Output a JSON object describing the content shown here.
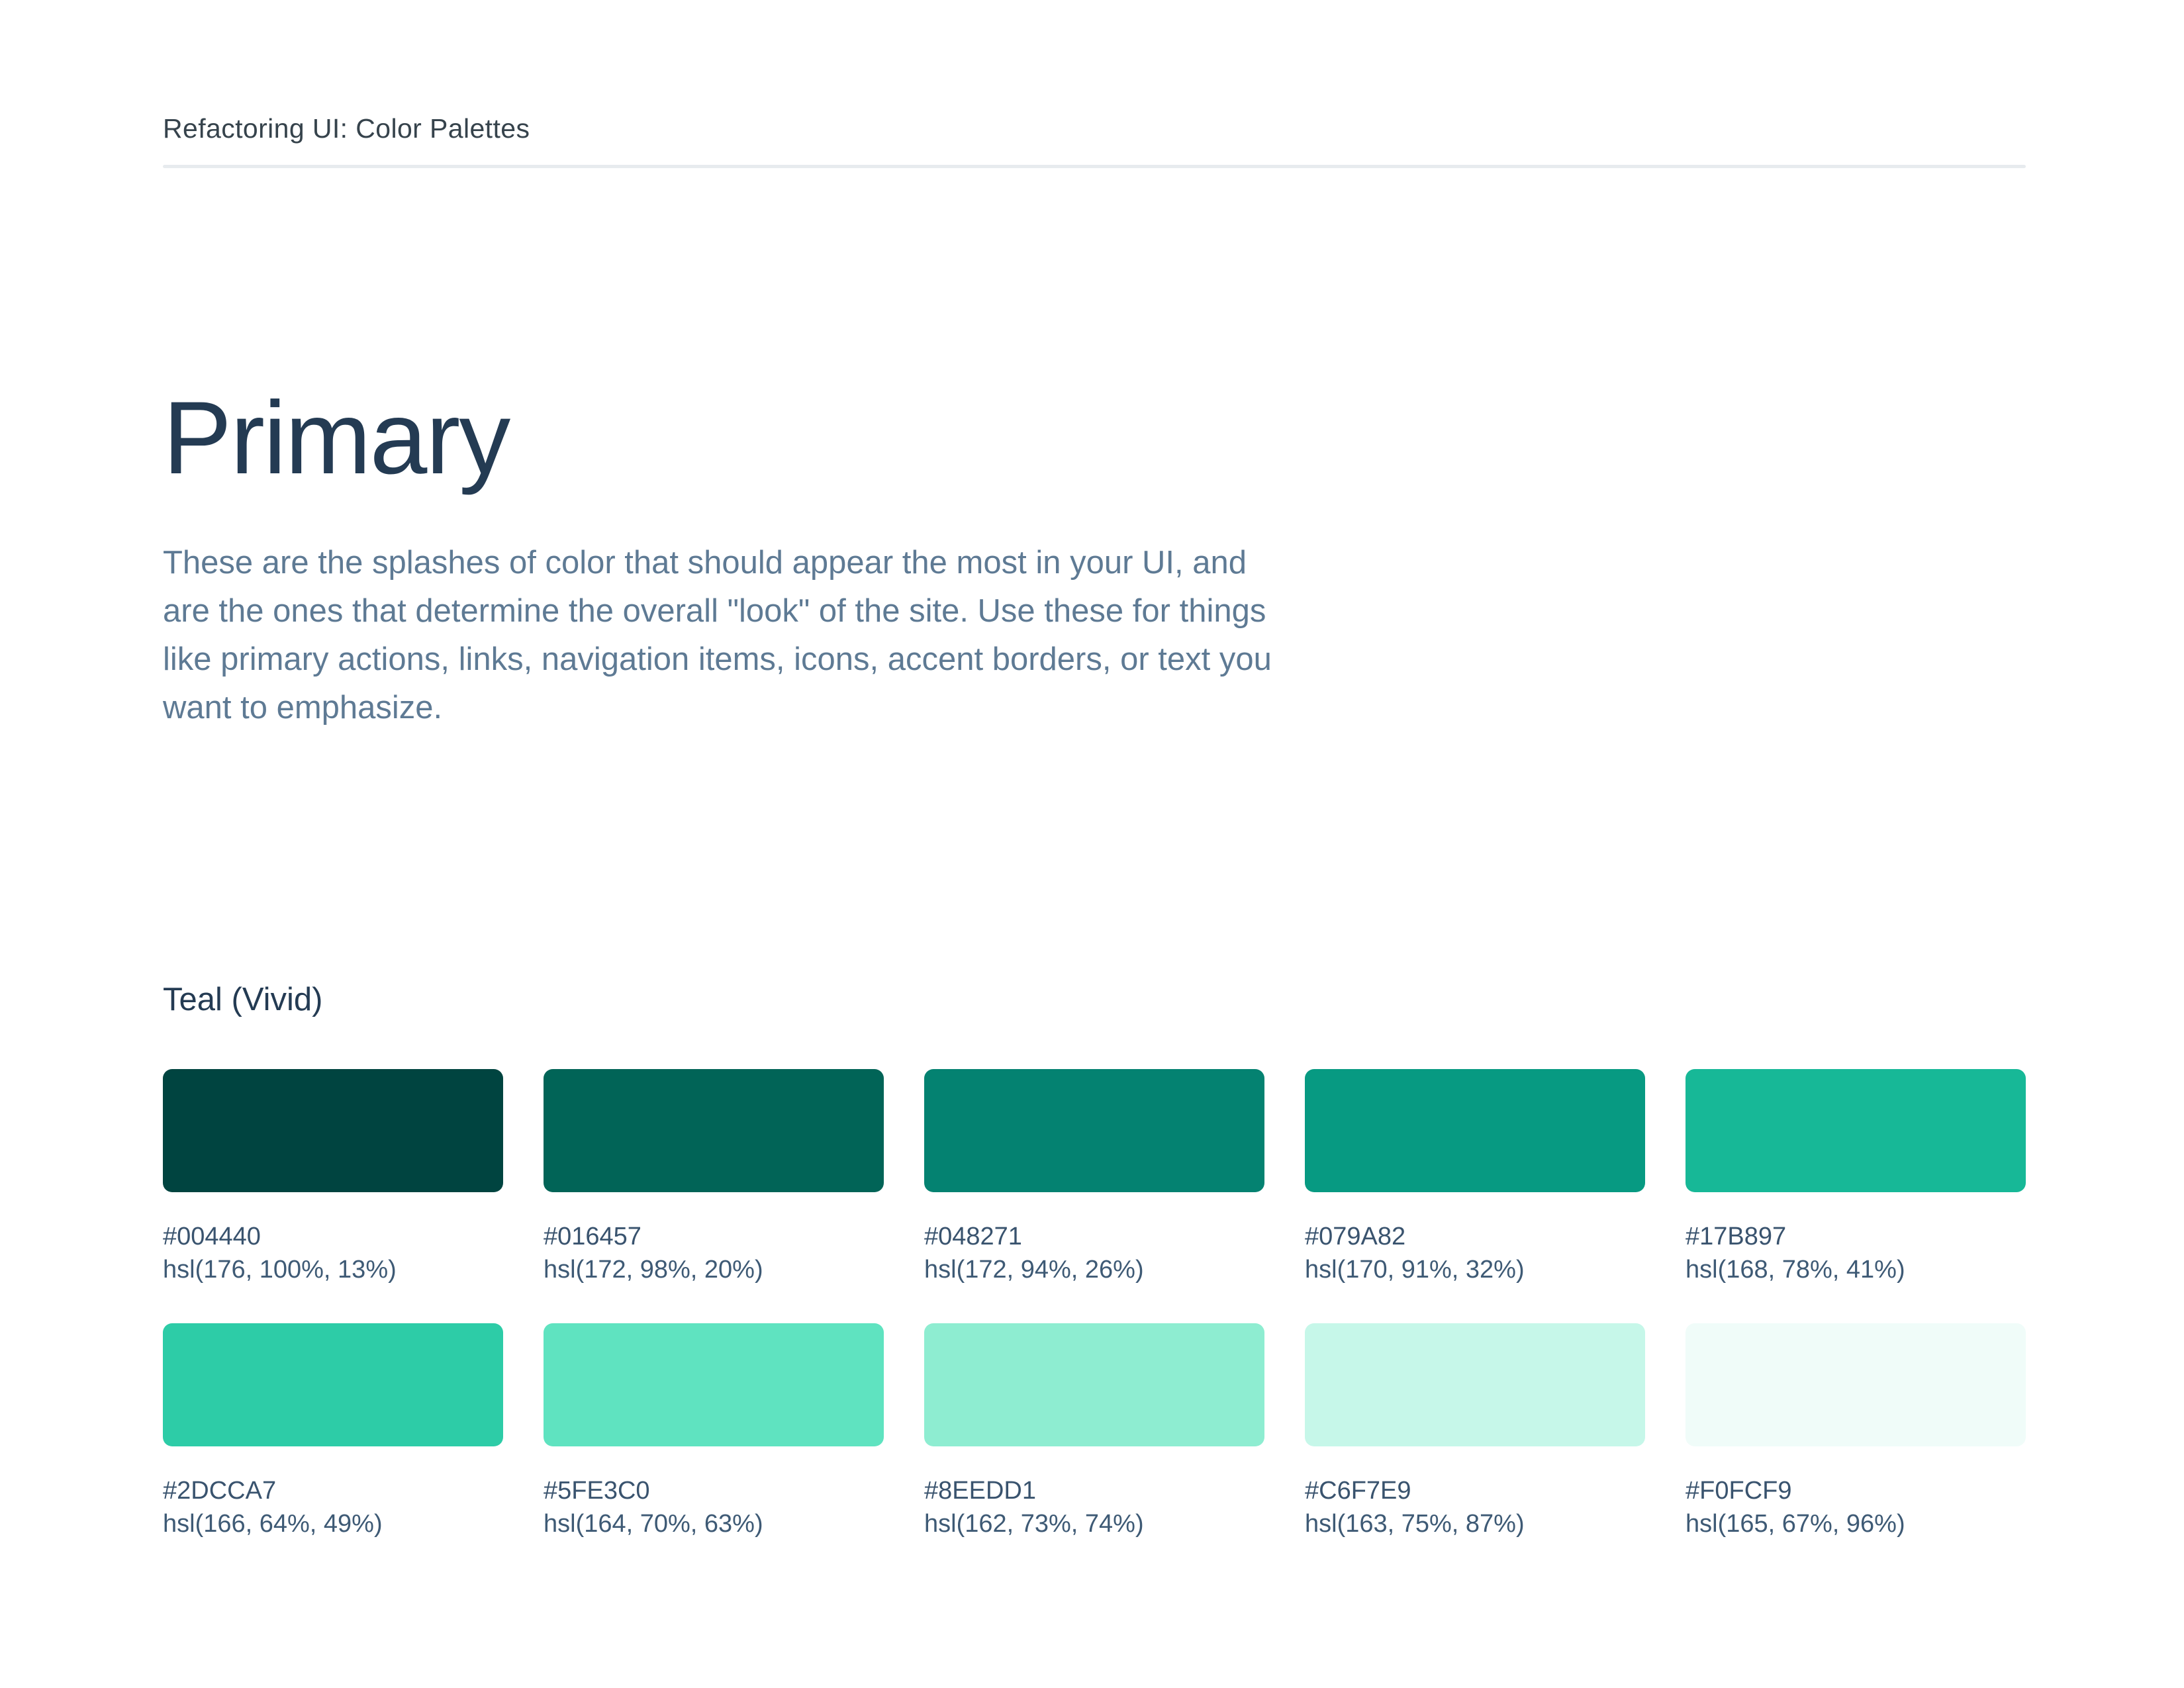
{
  "header": {
    "title": "Refactoring UI: Color Palettes"
  },
  "section": {
    "title": "Primary",
    "description": "These are the splashes of color that should appear the most in your UI, and are the ones that determine the overall \"look\" of the site. Use these for things like primary actions, links, navigation items, icons, accent borders, or text you want to emphasize."
  },
  "palette": {
    "name": "Teal (Vivid)",
    "swatches": [
      {
        "hex": "#004440",
        "hsl": "hsl(176, 100%, 13%)"
      },
      {
        "hex": "#016457",
        "hsl": "hsl(172, 98%, 20%)"
      },
      {
        "hex": "#048271",
        "hsl": "hsl(172, 94%, 26%)"
      },
      {
        "hex": "#079A82",
        "hsl": "hsl(170, 91%, 32%)"
      },
      {
        "hex": "#17B897",
        "hsl": "hsl(168, 78%, 41%)"
      },
      {
        "hex": "#2DCCA7",
        "hsl": "hsl(166, 64%, 49%)"
      },
      {
        "hex": "#5FE3C0",
        "hsl": "hsl(164, 70%, 63%)"
      },
      {
        "hex": "#8EEDD1",
        "hsl": "hsl(162, 73%, 74%)"
      },
      {
        "hex": "#C6F7E9",
        "hsl": "hsl(163, 75%, 87%)"
      },
      {
        "hex": "#F0FCF9",
        "hsl": "hsl(165, 67%, 96%)"
      }
    ]
  },
  "colors": {
    "page_background": "#FFFFFF",
    "header_text": "#36434C",
    "divider": "#E7EBEE",
    "heading_text": "#243B53",
    "body_text": "#5E7A94",
    "swatch_label_text": "#39536E"
  }
}
